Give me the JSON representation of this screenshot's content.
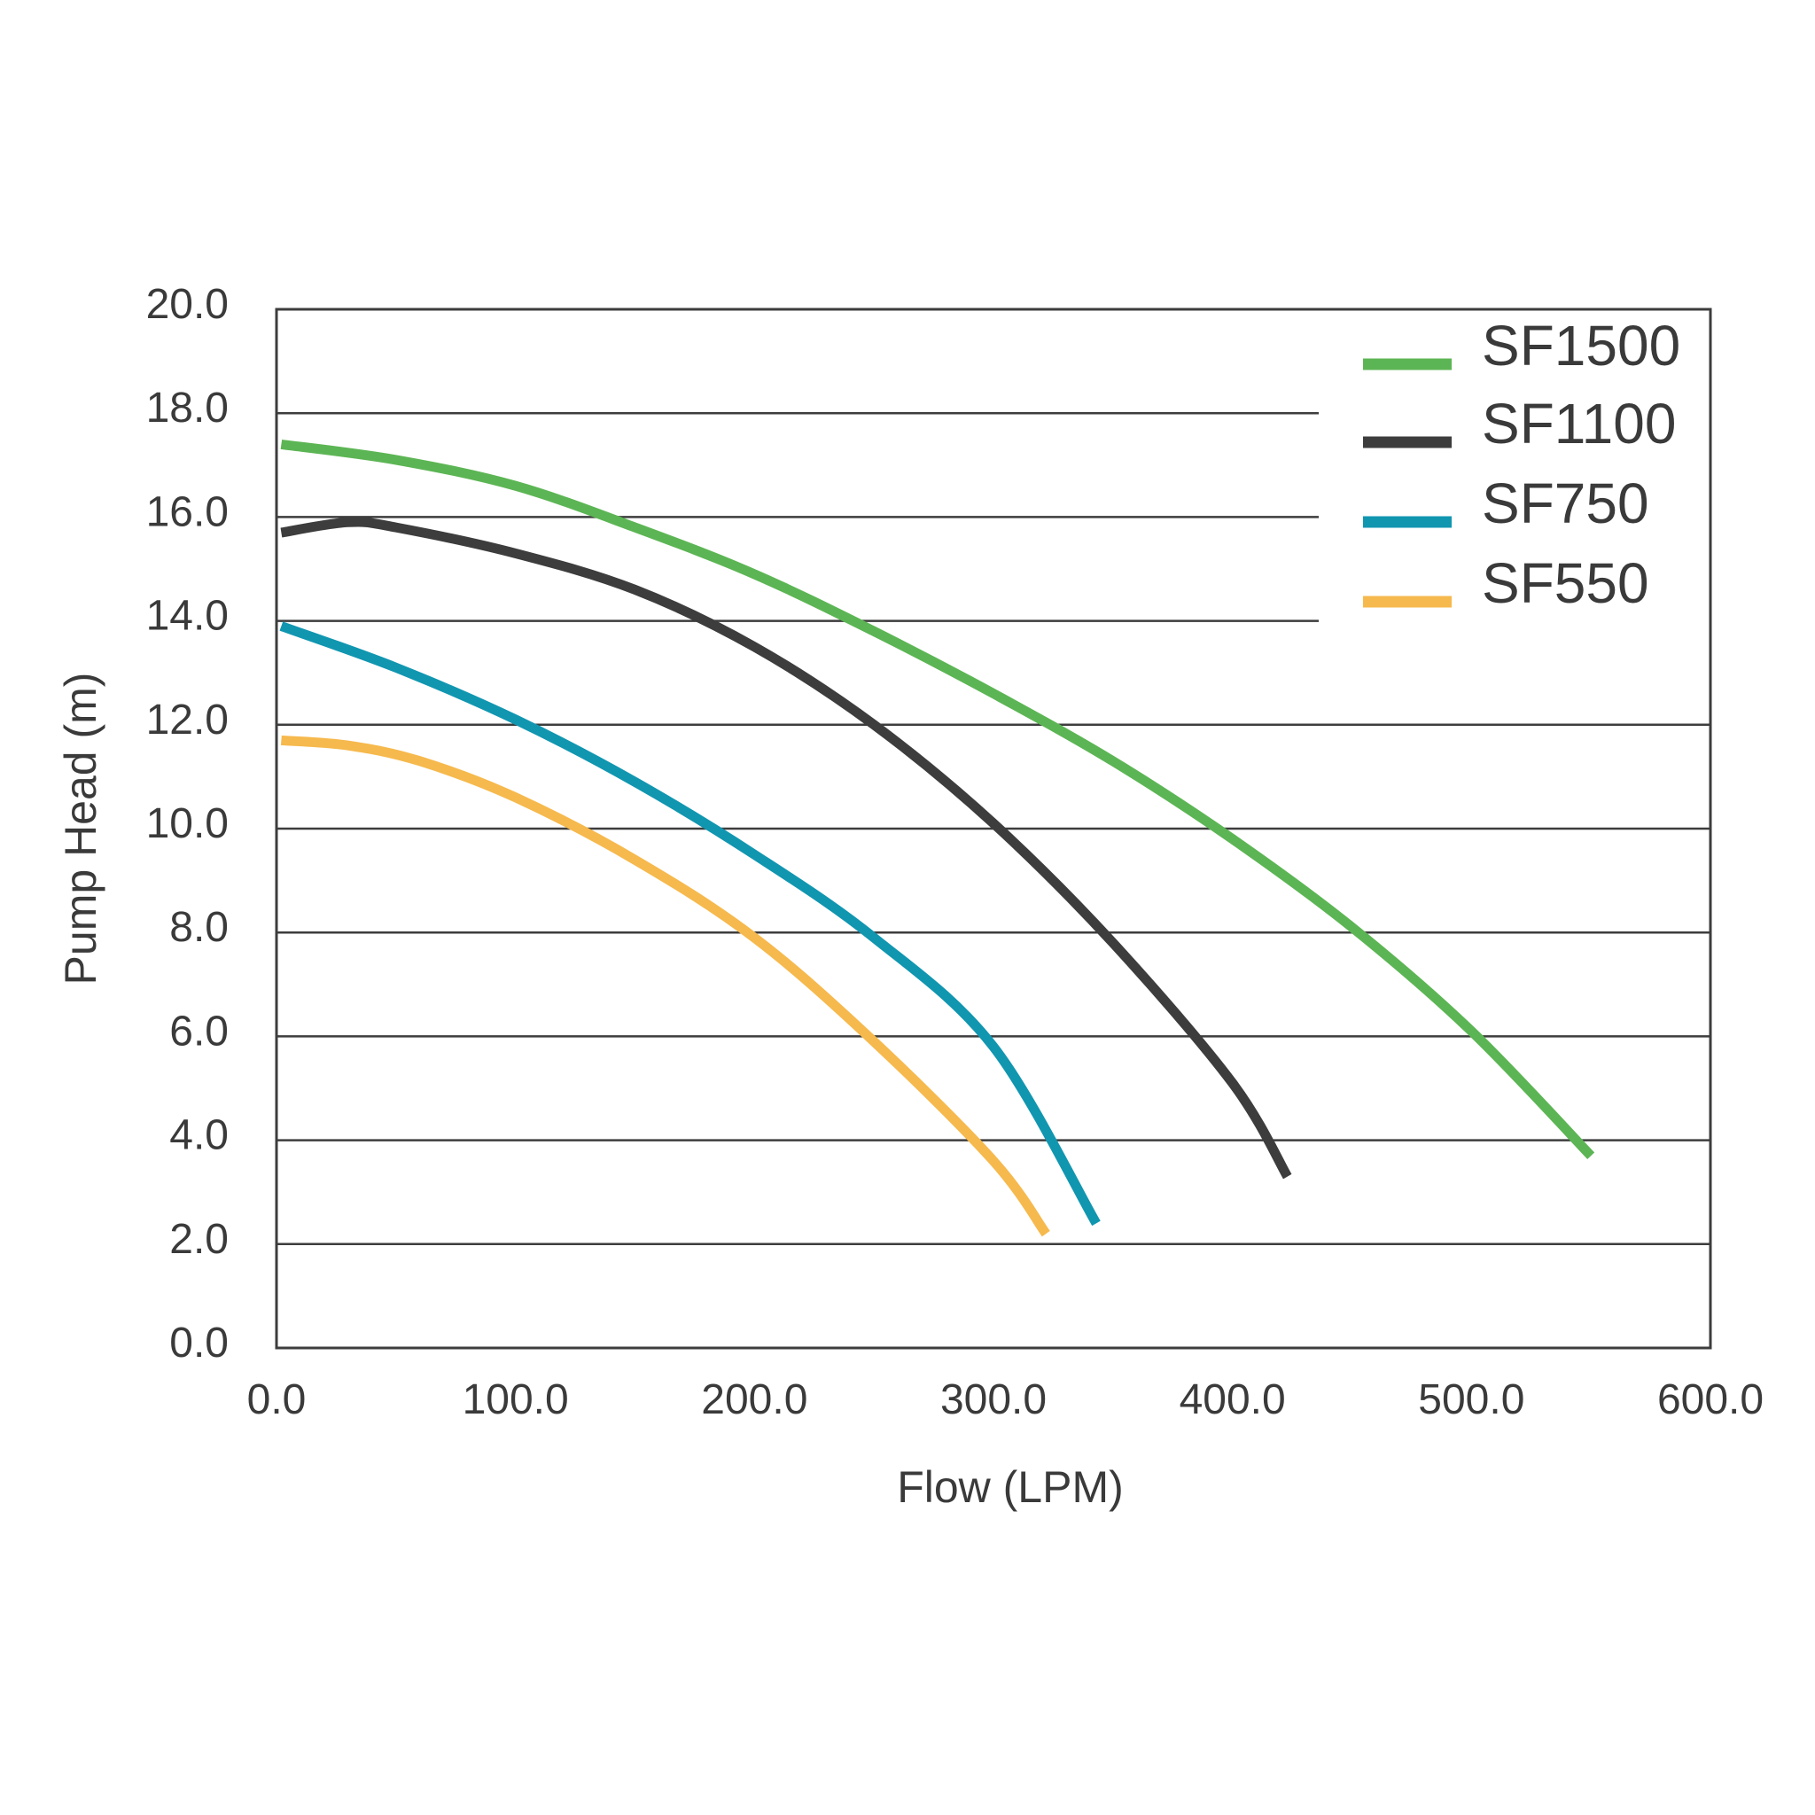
{
  "chart_data": {
    "type": "line",
    "xlabel": "Flow (LPM)",
    "ylabel": "Pump Head (m)",
    "xlim": [
      0,
      600
    ],
    "ylim": [
      0,
      20
    ],
    "x_ticks": [
      "0.0",
      "100.0",
      "200.0",
      "300.0",
      "400.0",
      "500.0",
      "600.0"
    ],
    "y_ticks": [
      "0.0",
      "2.0",
      "4.0",
      "6.0",
      "8.0",
      "10.0",
      "12.0",
      "14.0",
      "16.0",
      "18.0",
      "20.0"
    ],
    "grid": "horizontal",
    "legend": "top-right",
    "series": [
      {
        "name": "SF1500",
        "color": "#5cb554",
        "points": [
          [
            2,
            17.4
          ],
          [
            50,
            17.1
          ],
          [
            100,
            16.6
          ],
          [
            150,
            15.8
          ],
          [
            200,
            14.9
          ],
          [
            250,
            13.8
          ],
          [
            300,
            12.6
          ],
          [
            350,
            11.3
          ],
          [
            400,
            9.8
          ],
          [
            450,
            8.1
          ],
          [
            500,
            6.1
          ],
          [
            550,
            3.7
          ]
        ]
      },
      {
        "name": "SF1100",
        "color": "#3d3d3d",
        "points": [
          [
            2,
            15.7
          ],
          [
            30,
            15.9
          ],
          [
            50,
            15.8
          ],
          [
            100,
            15.3
          ],
          [
            150,
            14.6
          ],
          [
            200,
            13.5
          ],
          [
            250,
            12.0
          ],
          [
            300,
            10.1
          ],
          [
            350,
            7.8
          ],
          [
            400,
            5.1
          ],
          [
            423,
            3.3
          ]
        ]
      },
      {
        "name": "SF750",
        "color": "#1196b0",
        "points": [
          [
            2,
            13.9
          ],
          [
            50,
            13.1
          ],
          [
            100,
            12.1
          ],
          [
            150,
            10.9
          ],
          [
            200,
            9.5
          ],
          [
            250,
            7.9
          ],
          [
            300,
            5.8
          ],
          [
            343,
            2.4
          ]
        ]
      },
      {
        "name": "SF550",
        "color": "#f6b94d",
        "points": [
          [
            2,
            11.7
          ],
          [
            30,
            11.6
          ],
          [
            60,
            11.3
          ],
          [
            100,
            10.6
          ],
          [
            150,
            9.4
          ],
          [
            200,
            7.9
          ],
          [
            250,
            5.9
          ],
          [
            300,
            3.6
          ],
          [
            322,
            2.2
          ]
        ]
      }
    ]
  }
}
